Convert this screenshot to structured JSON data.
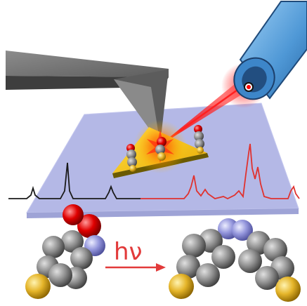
{
  "reaction": {
    "label": "hν",
    "arrow_color": "#e23a3a"
  },
  "colors": {
    "laser": "#ff2a2a",
    "spectrum_black": "#1a1a1a",
    "spectrum_red": "#e0322f",
    "substrate": "#b4b8e6",
    "gold_triangle": "#f4c400",
    "carbon": "#7a7a7a",
    "sulfur": "#e3b22a",
    "oxygen": "#e00000",
    "nitrogen": "#8d8fd8",
    "objective": "#5aa0dc"
  },
  "icons": [
    "afm-tip-icon",
    "objective-lens-icon",
    "laser-beam-icon",
    "gold-nanoplate-icon",
    "molecule-icon"
  ]
}
